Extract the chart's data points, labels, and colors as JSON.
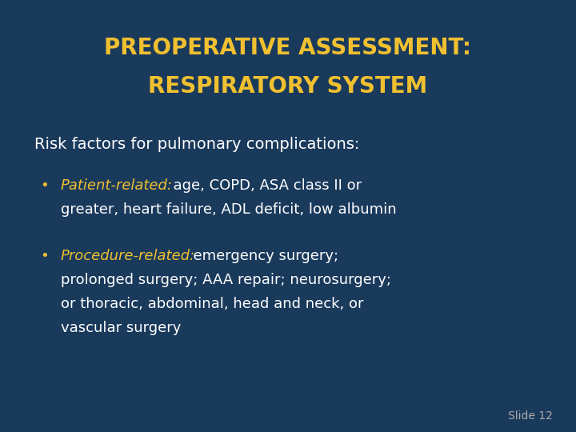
{
  "background_color": "#1a3a5c",
  "title_line1": "PREOPERATIVE ASSESSMENT:",
  "title_line2": "RESPIRATORY SYSTEM",
  "title_color": "#f0c030",
  "title_fontsize": 20,
  "subtitle": "Risk factors for pulmonary complications:",
  "subtitle_color": "#ffffff",
  "subtitle_fontsize": 14,
  "bullet_label_color": "#f0c030",
  "bullet_text_color": "#ffffff",
  "bullet_fontsize": 13,
  "bullet_marker": "•",
  "bullet1_label": "Patient-related:",
  "bullet1_line1_text": "  age, COPD, ASA class II or",
  "bullet1_line2": "greater, heart failure, ADL deficit, low albumin",
  "bullet2_label": "Procedure-related:",
  "bullet2_line1_text": "  emergency surgery;",
  "bullet2_line2": "prolonged surgery; AAA repair; neurosurgery;",
  "bullet2_line3": "or thoracic, abdominal, head and neck, or",
  "bullet2_line4": "vascular surgery",
  "slide_label": "Slide 12",
  "slide_label_color": "#aaaaaa",
  "slide_label_fontsize": 10
}
